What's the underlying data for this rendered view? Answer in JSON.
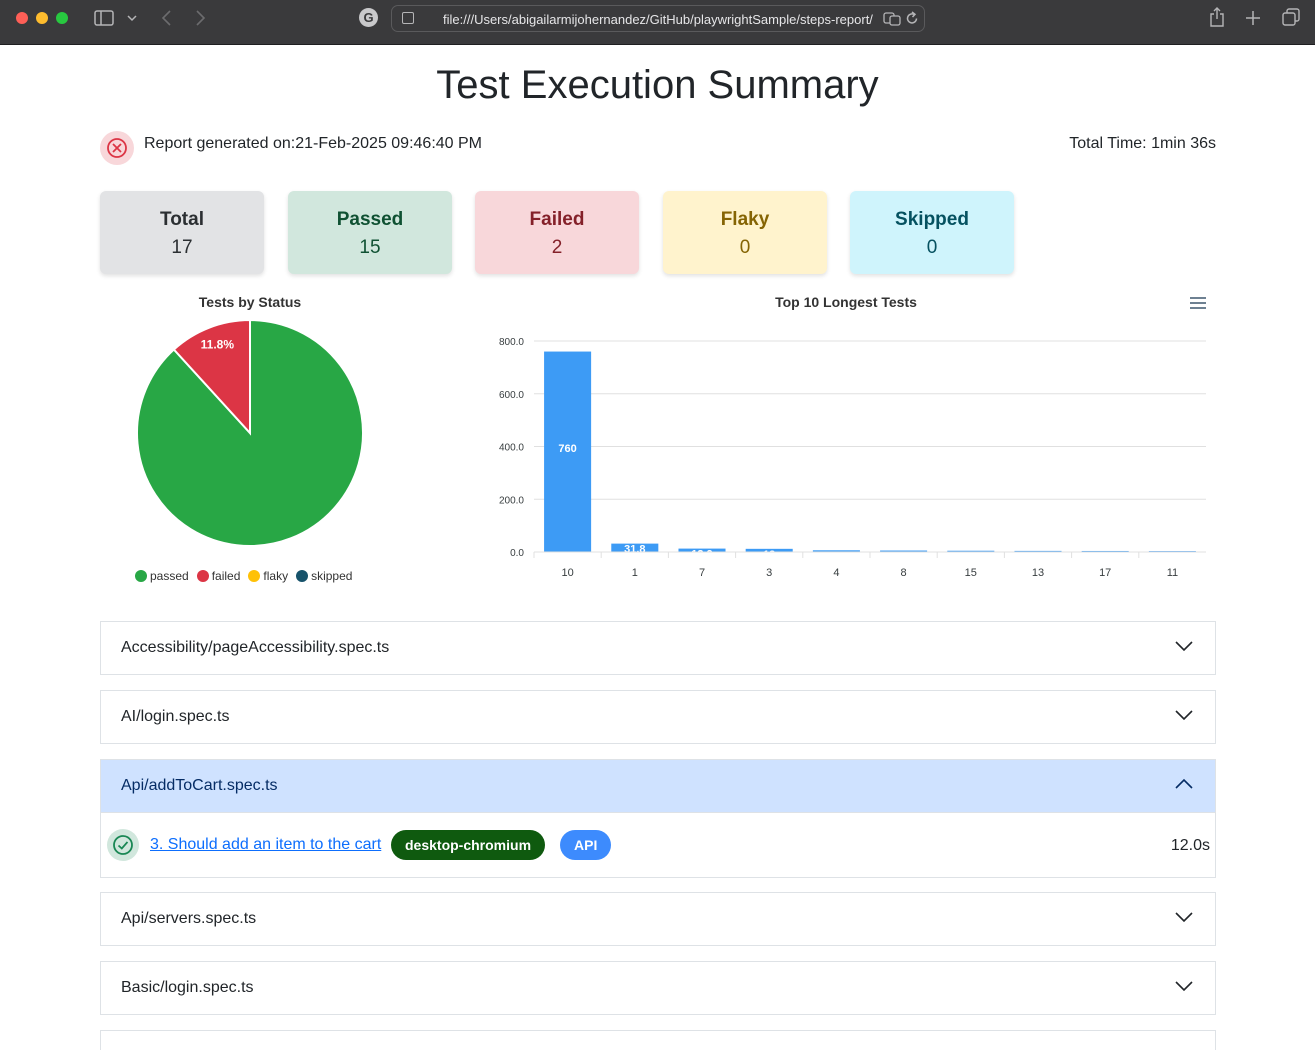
{
  "browser": {
    "url": "file:///Users/abigailarmijohernandez/GitHub/playwrightSample/steps-report/index.html"
  },
  "page": {
    "title": "Test Execution Summary",
    "report_generated": "Report generated on:21-Feb-2025 09:46:40 PM",
    "total_time": "Total Time: 1min 36s"
  },
  "summary": {
    "total": {
      "label": "Total",
      "value": "17"
    },
    "passed": {
      "label": "Passed",
      "value": "15"
    },
    "failed": {
      "label": "Failed",
      "value": "2"
    },
    "flaky": {
      "label": "Flaky",
      "value": "0"
    },
    "skipped": {
      "label": "Skipped",
      "value": "0"
    }
  },
  "colors": {
    "passed": "#28a745",
    "failed": "#dc3545",
    "flaky": "#ffc107",
    "skipped": "#17536b",
    "bar": "#3d9bf5"
  },
  "chart_data": [
    {
      "type": "pie",
      "title": "Tests by Status",
      "categories": [
        "passed",
        "failed",
        "flaky",
        "skipped"
      ],
      "values": [
        15,
        2,
        0,
        0
      ],
      "labels": [
        "88.2%",
        "11.8%",
        "",
        ""
      ],
      "legend": "bottom"
    },
    {
      "type": "bar",
      "title": "Top 10 Longest Tests",
      "categories": [
        "10",
        "1",
        "7",
        "3",
        "4",
        "8",
        "15",
        "13",
        "17",
        "11"
      ],
      "values": [
        760,
        31.8,
        12.9,
        12,
        6.5,
        5.6,
        4.8,
        4.2,
        3.9,
        3.5
      ],
      "value_labels": [
        "760",
        "31.8",
        "12.9",
        "12",
        "",
        "",
        "",
        "",
        "",
        ""
      ],
      "yticks": [
        "0.0",
        "200.0",
        "400.0",
        "600.0",
        "800.0"
      ],
      "ylim": [
        0,
        800
      ],
      "grid": true
    }
  ],
  "suites": [
    {
      "name": "Accessibility/pageAccessibility.spec.ts",
      "open": false
    },
    {
      "name": "AI/login.spec.ts",
      "open": false
    },
    {
      "name": "Api/addToCart.spec.ts",
      "open": true,
      "tests": [
        {
          "title": "3. Should add an item to the cart",
          "project": "desktop-chromium",
          "tag": "API",
          "duration": "12.0s"
        }
      ]
    },
    {
      "name": "Api/servers.spec.ts",
      "open": false
    },
    {
      "name": "Basic/login.spec.ts",
      "open": false
    }
  ]
}
